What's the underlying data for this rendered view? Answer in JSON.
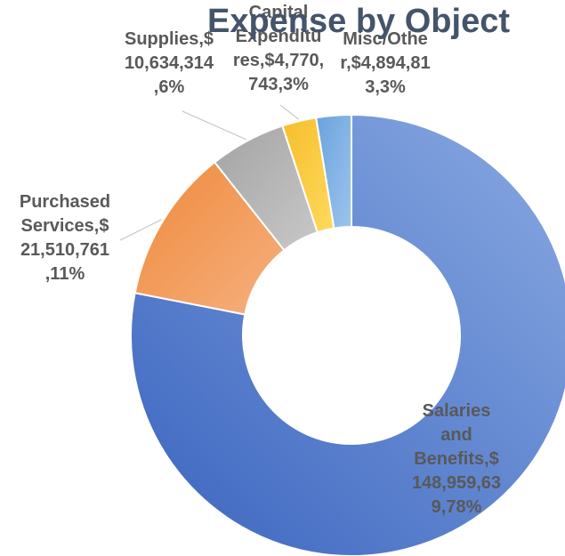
{
  "chart_data": {
    "type": "pie",
    "style": "donut",
    "title": "Expense by Object",
    "categories": [
      "Salaries and Benefits",
      "Purchased Services",
      "Supplies",
      "Capital Expenditures",
      "Misc/Other"
    ],
    "values": [
      148959639,
      21510761,
      10634314,
      4770743,
      4894813
    ],
    "percent_labels": [
      "78%",
      "11%",
      "6%",
      "3%",
      "3%"
    ],
    "data_labels": [
      [
        "Salaries",
        "and",
        "Benefits,$",
        "148,959,63",
        "9,78%"
      ],
      [
        "Purchased",
        "Services,$",
        "21,510,761",
        ",11%"
      ],
      [
        "Supplies,$",
        "10,634,314",
        ",6%"
      ],
      [
        "Capital",
        "Expenditu",
        "res,$4,770,",
        "743,3%"
      ],
      [
        "Misc/Othe",
        "r,$4,894,81",
        "3,3%"
      ]
    ],
    "colors": [
      "#5b8bd7",
      "#ed7d31",
      "#a5a5a5",
      "#ffc000",
      "#5b9bd5"
    ],
    "legend": "none"
  }
}
